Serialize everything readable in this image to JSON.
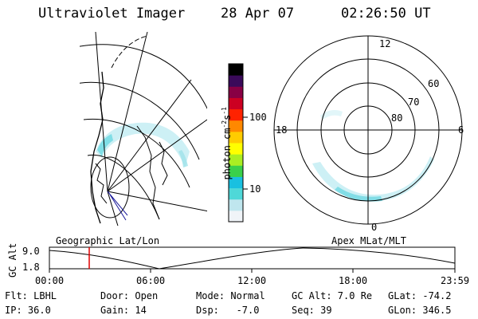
{
  "header": {
    "instrument": "Ultraviolet Imager",
    "date": "28 Apr 07",
    "time": "02:26:50 UT"
  },
  "colorbar": {
    "unit_label": "photon cm",
    "unit_sup1": "-2",
    "unit_s": "s",
    "unit_sup2": "-1",
    "ticks": [
      "100",
      "10"
    ],
    "ramp": [
      "#f0f4f8",
      "#bfe6ee",
      "#4fd8d8",
      "#19c0e0",
      "#3ad04a",
      "#aaee22",
      "#ffff00",
      "#ffcc00",
      "#ff8800",
      "#ff2200",
      "#cc0022",
      "#880044",
      "#3a0a5a",
      "#000000"
    ]
  },
  "polar_plot": {
    "mlt_labels": {
      "top": "12",
      "left": "18",
      "right": "6",
      "bottom": "0"
    },
    "lat_labels": [
      "60",
      "70",
      "80"
    ]
  },
  "map_labels": {
    "left": "Geographic Lat/Lon",
    "right": "Apex MLat/MLT"
  },
  "altitude_plot": {
    "axis_label": "GC Alt",
    "y_ticks": [
      "9.0",
      "1.8"
    ],
    "x_ticks": [
      "00:00",
      "06:00",
      "12:00",
      "18:00",
      "23:59"
    ]
  },
  "status": {
    "filter": "Flt: LBHL",
    "ip": "IP: 36.0",
    "door": "Door: Open",
    "gain": "Gain: 14",
    "mode": "Mode: Normal",
    "dsp": "Dsp:   -7.0",
    "gc_alt": "GC Alt: 7.0 Re",
    "seq": "Seq: 39",
    "glat": "GLat: -74.2",
    "glon": "GLon: 346.5"
  }
}
